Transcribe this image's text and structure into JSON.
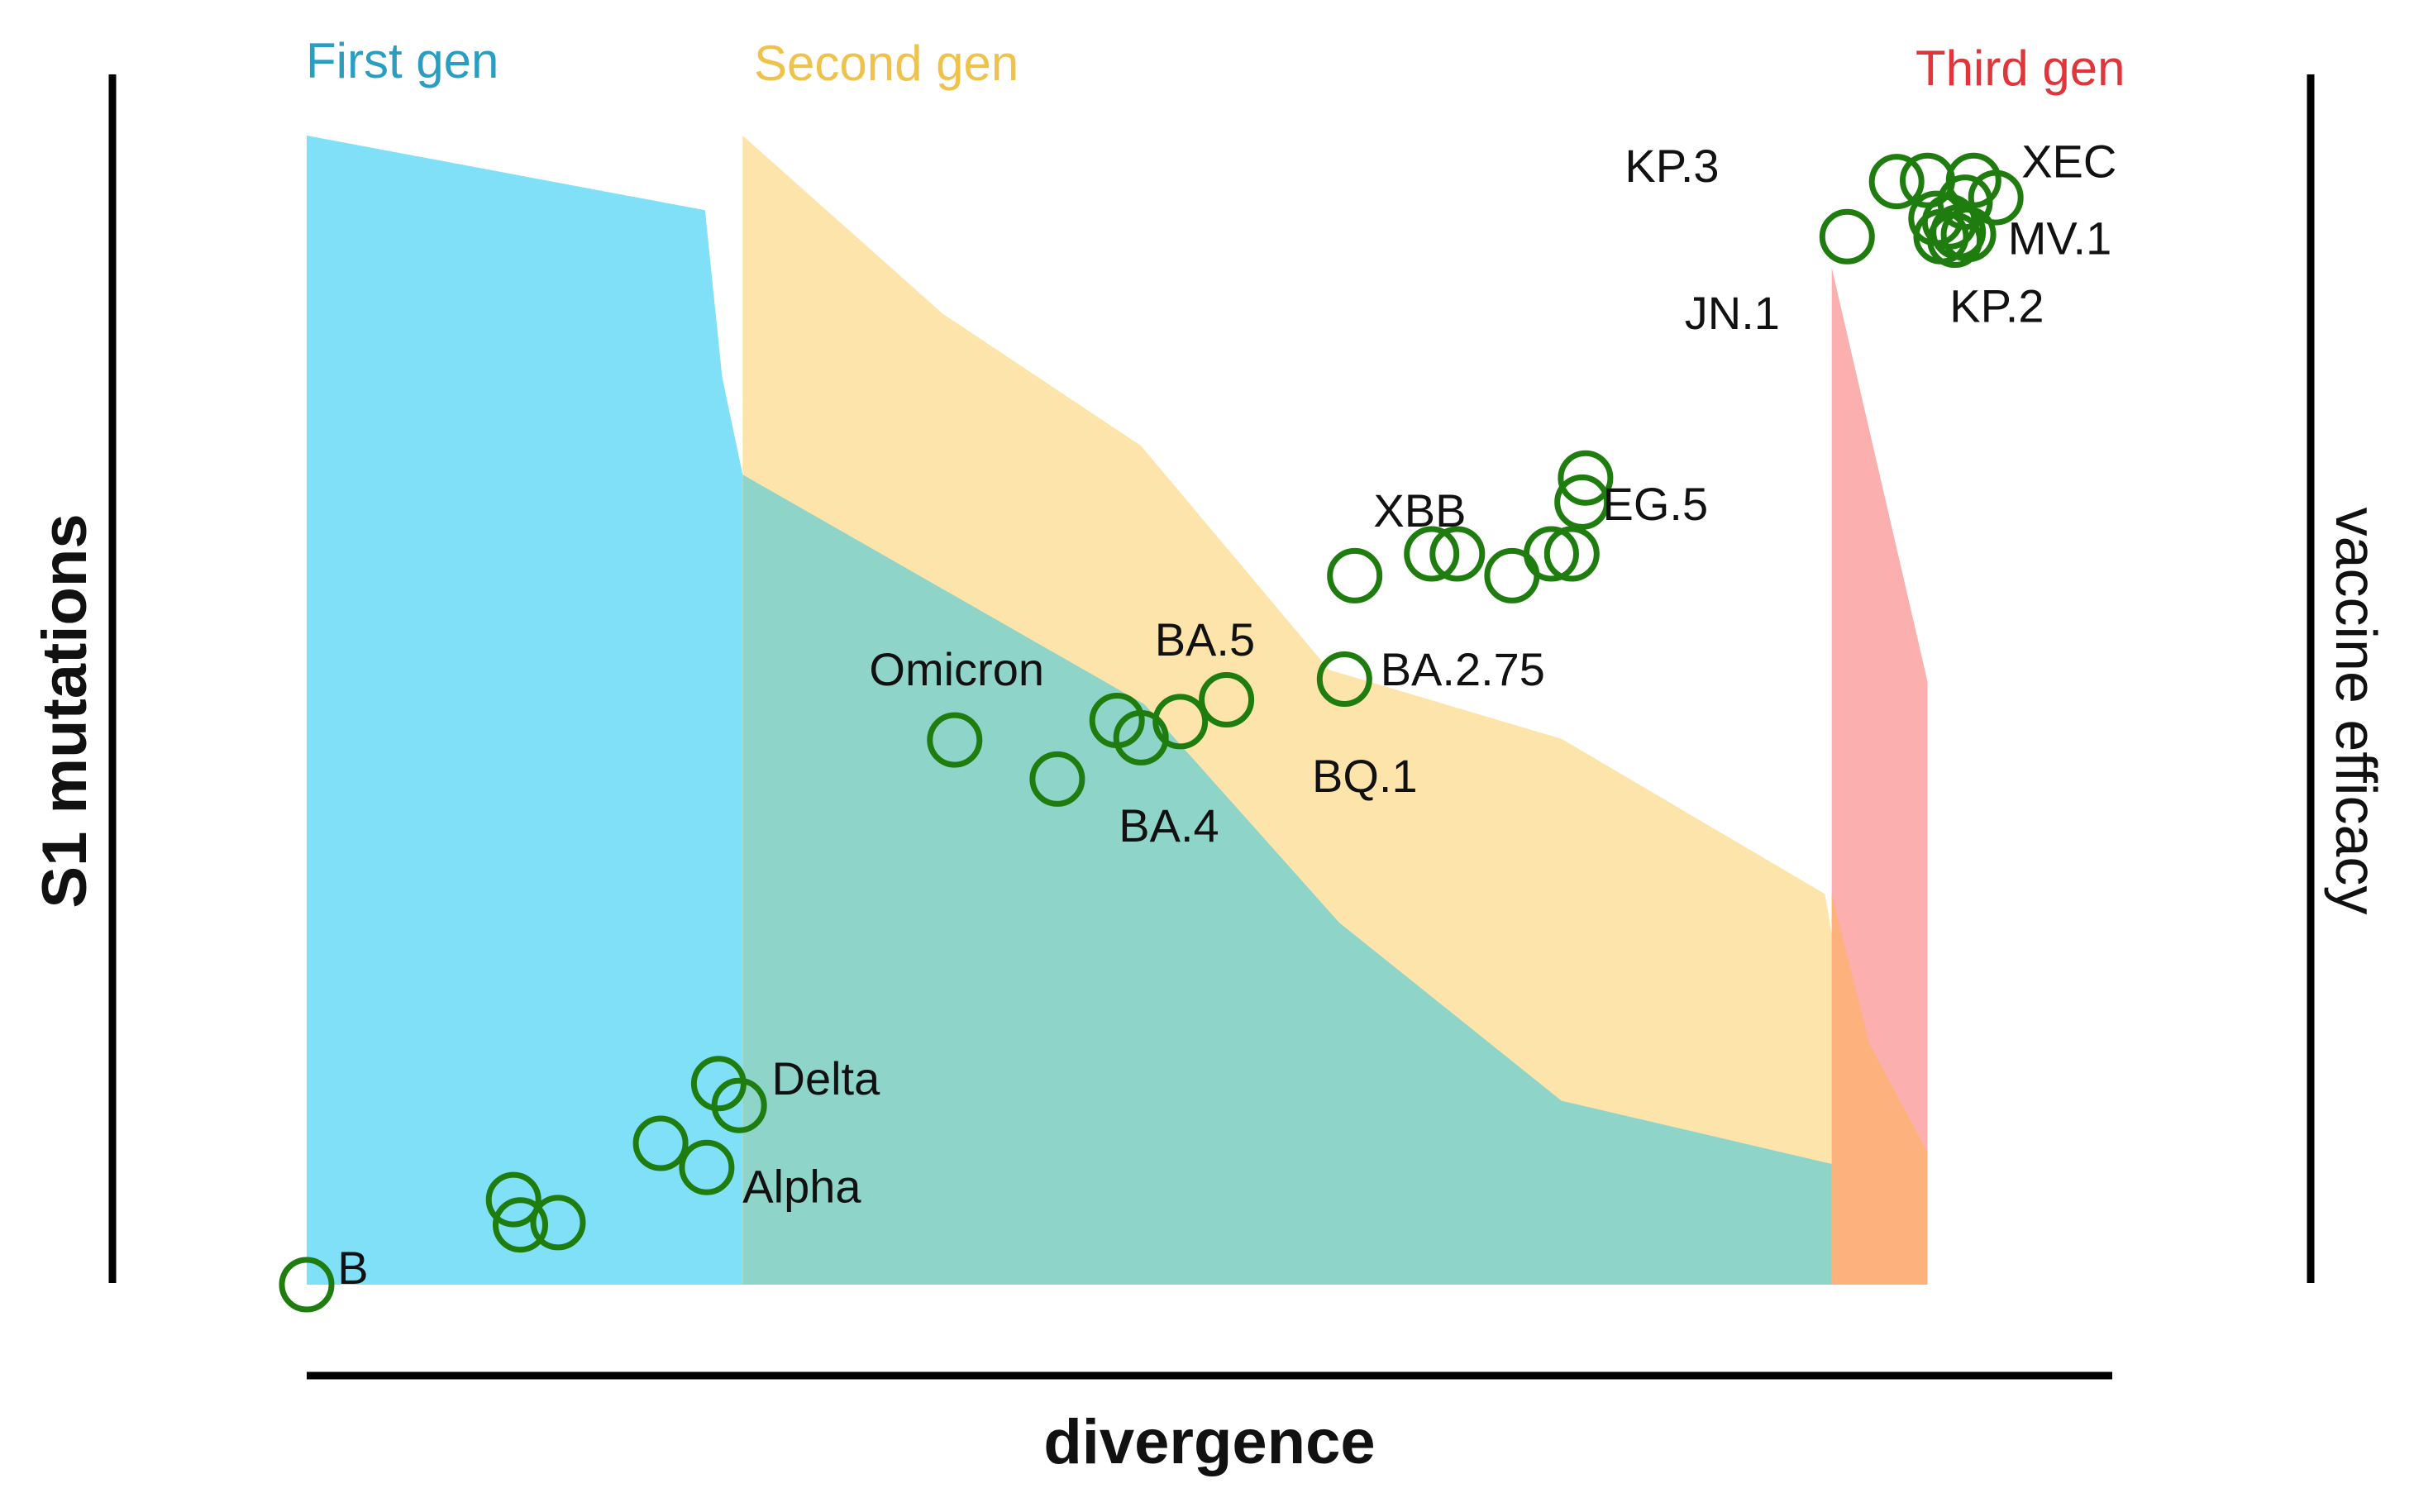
{
  "chart_data": {
    "type": "scatter",
    "title": "",
    "xlabel": "divergence",
    "ylabel": "S1 mutations",
    "y2label": "vaccine efficacy",
    "xlim": [
      0,
      100
    ],
    "ylim": [
      0,
      100
    ],
    "colors": {
      "first_gen": "#80E0F8",
      "second_gen": "#FDE4AA",
      "overlap": "#8ED4C8",
      "third_gen": "#FBAFAE",
      "third_overlap": "#FDB27E",
      "marker": "#1E7D0E",
      "first_gen_label": "#2A9EC0",
      "second_gen_label": "#EFC24C",
      "third_gen_label": "#E2343B"
    },
    "generations": [
      {
        "name": "First gen",
        "color_key": "first_gen_label",
        "efficacy": [
          [
            0,
            100
          ],
          [
            23.3,
            93.5
          ],
          [
            24.3,
            79
          ],
          [
            25.5,
            70.5
          ]
        ]
      },
      {
        "name": "Second gen",
        "color_key": "second_gen_label",
        "efficacy": [
          [
            25.5,
            100
          ],
          [
            37.2,
            84.5
          ],
          [
            48.8,
            73
          ],
          [
            59.8,
            53.5
          ],
          [
            73.4,
            47.5
          ],
          [
            88.8,
            34
          ],
          [
            89.2,
            30.5
          ]
        ]
      },
      {
        "name": "Third gen",
        "color_key": "third_gen_label",
        "efficacy": [
          [
            89.2,
            88.5
          ],
          [
            94.8,
            52.5
          ],
          [
            94.8,
            11.5
          ]
        ]
      }
    ],
    "overlap_boundary": [
      [
        25.5,
        70.5
      ],
      [
        49.0,
        50.5
      ],
      [
        60.4,
        31.5
      ],
      [
        73.4,
        16
      ],
      [
        89.2,
        10.5
      ]
    ],
    "third_overlap_boundary": [
      [
        89.2,
        34
      ],
      [
        91.4,
        21
      ],
      [
        94.8,
        11.5
      ]
    ],
    "points": [
      {
        "x": 0,
        "y": 0
      },
      {
        "x": 12.1,
        "y": 7.4
      },
      {
        "x": 12.5,
        "y": 5.2
      },
      {
        "x": 14.7,
        "y": 5.4
      },
      {
        "x": 20.7,
        "y": 12.3
      },
      {
        "x": 23.4,
        "y": 10.2
      },
      {
        "x": 24.1,
        "y": 17.5
      },
      {
        "x": 25.3,
        "y": 15.6
      },
      {
        "x": 37.9,
        "y": 47.4
      },
      {
        "x": 43.9,
        "y": 44.0
      },
      {
        "x": 47.4,
        "y": 49.1
      },
      {
        "x": 48.8,
        "y": 47.6
      },
      {
        "x": 51.1,
        "y": 49.0
      },
      {
        "x": 53.8,
        "y": 50.9
      },
      {
        "x": 60.7,
        "y": 52.7
      },
      {
        "x": 61.3,
        "y": 61.7
      },
      {
        "x": 65.8,
        "y": 63.6
      },
      {
        "x": 67.3,
        "y": 63.6
      },
      {
        "x": 70.5,
        "y": 61.7
      },
      {
        "x": 72.8,
        "y": 63.6
      },
      {
        "x": 74.0,
        "y": 63.6
      },
      {
        "x": 74.6,
        "y": 68.1
      },
      {
        "x": 74.8,
        "y": 70.2
      },
      {
        "x": 90.1,
        "y": 91.2
      },
      {
        "x": 93.0,
        "y": 96.0
      },
      {
        "x": 94.8,
        "y": 96.1
      },
      {
        "x": 97.5,
        "y": 96.1
      },
      {
        "x": 98.8,
        "y": 94.6
      },
      {
        "x": 95.3,
        "y": 92.8
      },
      {
        "x": 96.1,
        "y": 92.5
      },
      {
        "x": 96.6,
        "y": 91.6
      },
      {
        "x": 95.6,
        "y": 91.2
      },
      {
        "x": 96.4,
        "y": 90.9
      },
      {
        "x": 97.2,
        "y": 91.4
      },
      {
        "x": 97.0,
        "y": 94.2
      }
    ],
    "annotations": [
      {
        "text": "B",
        "x": 1.8,
        "y": 1.5
      },
      {
        "text": "Delta",
        "x": 27.2,
        "y": 18.0
      },
      {
        "text": "Alpha",
        "x": 25.5,
        "y": 8.6
      },
      {
        "text": "Omicron",
        "x": 32.9,
        "y": 53.6
      },
      {
        "text": "BA.5",
        "x": 49.6,
        "y": 56.2
      },
      {
        "text": "BA.4",
        "x": 47.5,
        "y": 40.0
      },
      {
        "text": "BQ.1",
        "x": 58.8,
        "y": 44.3
      },
      {
        "text": "BA.2.75",
        "x": 62.8,
        "y": 53.6
      },
      {
        "text": "XBB",
        "x": 62.4,
        "y": 67.4
      },
      {
        "text": "EG.5",
        "x": 75.8,
        "y": 68.0
      },
      {
        "text": "KP.3",
        "x": 77.1,
        "y": 97.4
      },
      {
        "text": "XEC",
        "x": 100.3,
        "y": 97.8
      },
      {
        "text": "MV.1",
        "x": 99.5,
        "y": 91.1
      },
      {
        "text": "JN.1",
        "x": 80.6,
        "y": 84.6
      },
      {
        "text": "KP.2",
        "x": 96.1,
        "y": 85.2
      }
    ]
  }
}
